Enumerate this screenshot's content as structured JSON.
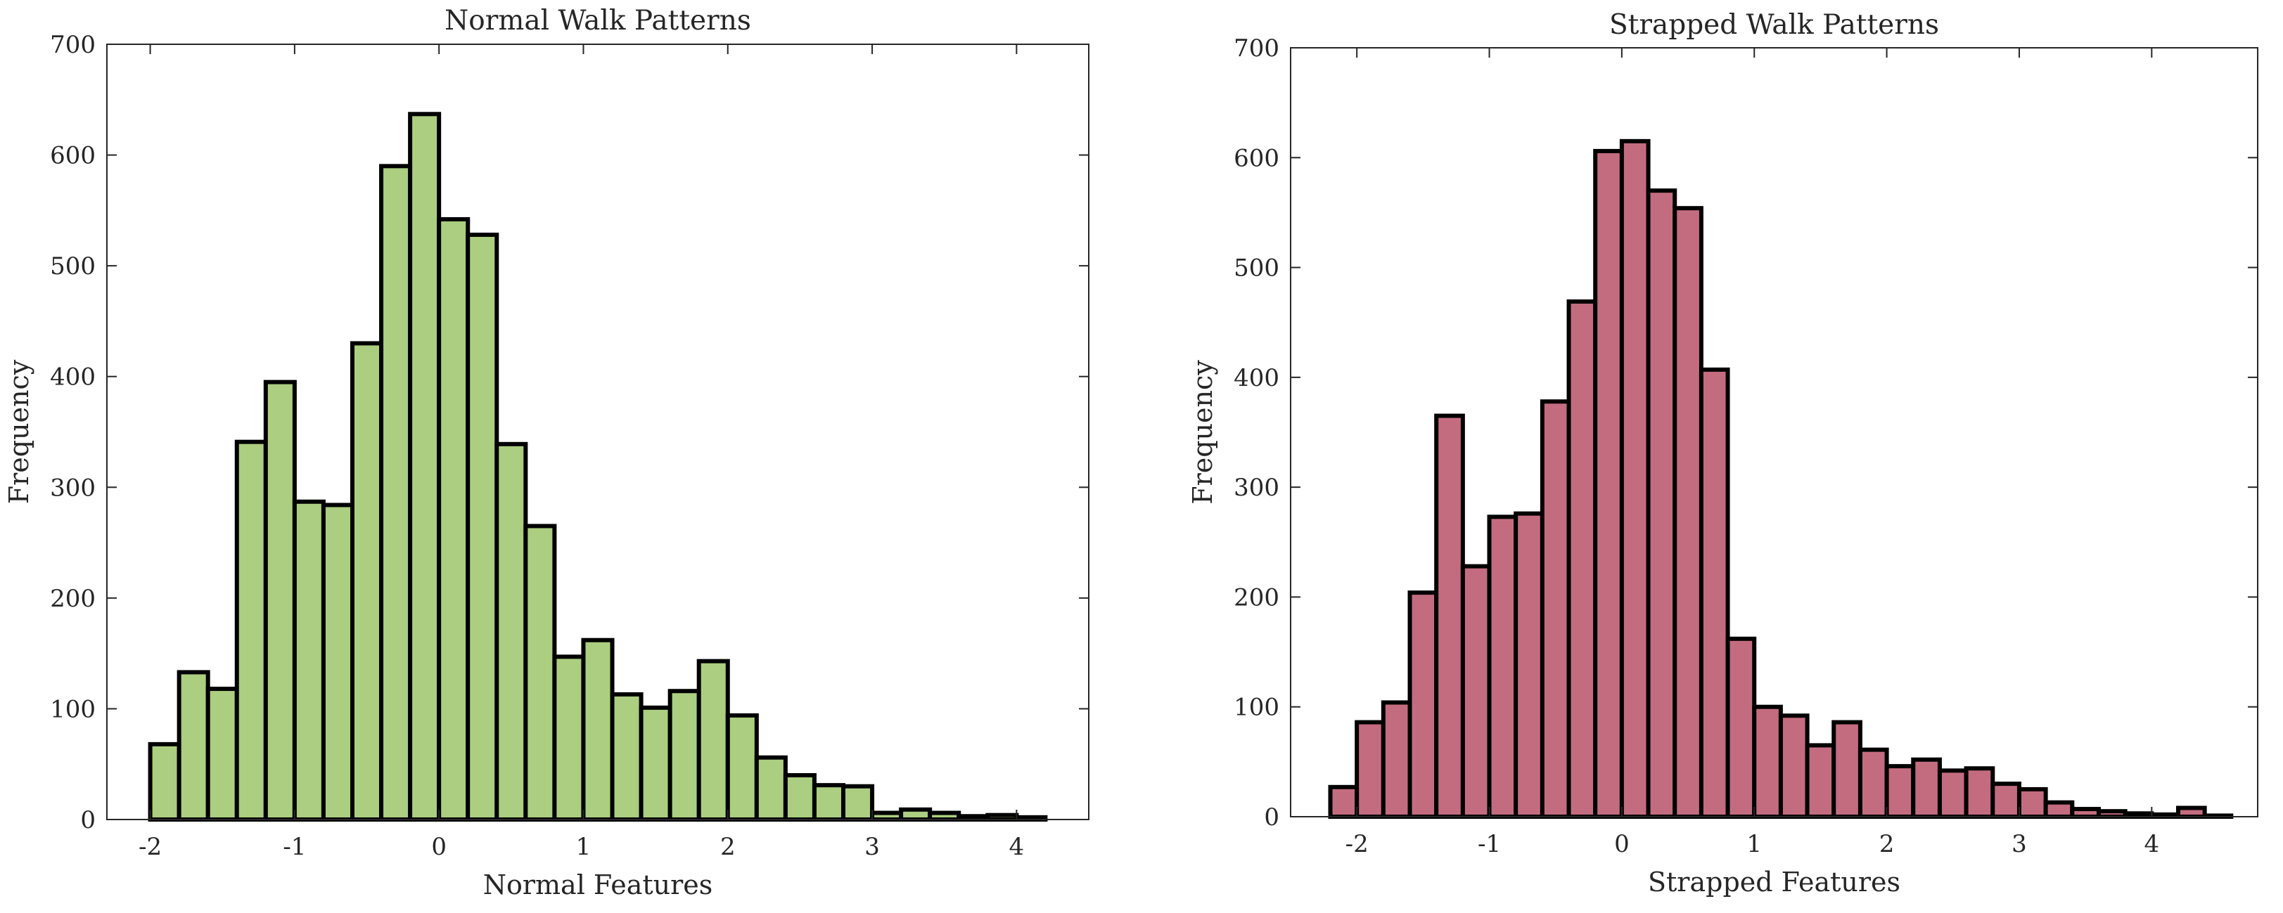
{
  "chart_data": [
    {
      "type": "bar",
      "title": "Normal Walk Patterns",
      "xlabel": "Normal Features",
      "ylabel": "Frequency",
      "color": "#acce80",
      "edge_color": "#000000",
      "xlim": [
        -2.3,
        4.5
      ],
      "ylim": [
        0,
        700
      ],
      "xticks": [
        -2,
        -1,
        0,
        1,
        2,
        3,
        4
      ],
      "yticks": [
        0,
        100,
        200,
        300,
        400,
        500,
        600,
        700
      ],
      "grid": false,
      "bin_start": -2.0,
      "bin_width": 0.2,
      "values": [
        68,
        133,
        118,
        341,
        395,
        287,
        284,
        430,
        590,
        637,
        542,
        528,
        339,
        265,
        147,
        162,
        113,
        101,
        116,
        143,
        94,
        56,
        40,
        31,
        30,
        6,
        9,
        6,
        3,
        4,
        2
      ]
    },
    {
      "type": "bar",
      "title": "Strapped Walk Patterns",
      "xlabel": "Strapped Features",
      "ylabel": "Frequency",
      "color": "#c46c7f",
      "edge_color": "#000000",
      "xlim": [
        -2.5,
        4.8
      ],
      "ylim": [
        0,
        700
      ],
      "xticks": [
        -2,
        -1,
        0,
        1,
        2,
        3,
        4
      ],
      "yticks": [
        0,
        100,
        200,
        300,
        400,
        500,
        600,
        700
      ],
      "grid": false,
      "bin_start": -2.2,
      "bin_width": 0.2,
      "values": [
        27,
        86,
        104,
        204,
        365,
        228,
        273,
        276,
        378,
        469,
        606,
        615,
        570,
        554,
        407,
        162,
        100,
        92,
        65,
        86,
        61,
        46,
        52,
        42,
        44,
        30,
        25,
        13,
        7,
        5,
        3,
        2,
        8,
        1
      ]
    }
  ]
}
